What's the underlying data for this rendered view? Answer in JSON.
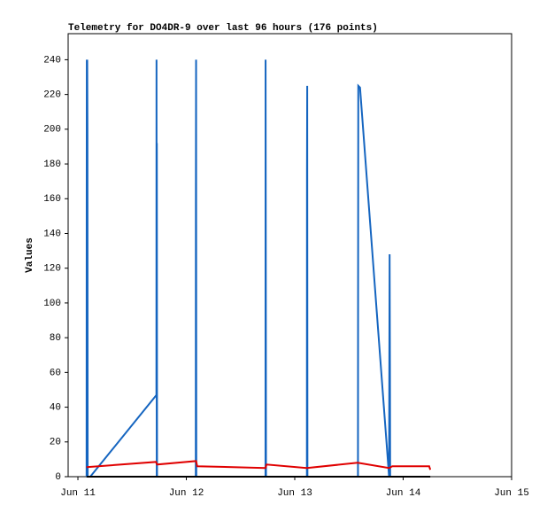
{
  "chart_data": {
    "type": "line",
    "title": "Telemetry for DO4DR-9 over last 96 hours (176 points)",
    "y_label": "Values",
    "xlim": [
      10.91,
      15.0
    ],
    "xticks": [
      {
        "value": 11,
        "label": "Jun 11"
      },
      {
        "value": 12,
        "label": "Jun 12"
      },
      {
        "value": 13,
        "label": "Jun 13"
      },
      {
        "value": 14,
        "label": "Jun 14"
      },
      {
        "value": 15,
        "label": "Jun 15"
      }
    ],
    "ylim": [
      0,
      255
    ],
    "yticks": [
      0,
      20,
      40,
      60,
      80,
      100,
      120,
      140,
      160,
      180,
      200,
      220,
      240
    ],
    "grid": false,
    "series": [
      {
        "color": "#1565c0",
        "x": [
          11.08,
          11.081,
          11.082,
          11.084,
          11.086,
          11.088,
          11.09,
          11.114,
          11.724,
          11.725,
          11.727,
          11.728,
          11.73,
          12.087,
          12.088,
          12.09,
          12.092,
          12.73,
          12.731,
          12.733,
          12.735,
          13.112,
          13.113,
          13.115,
          13.117,
          13.583,
          13.584,
          13.586,
          13.602,
          13.87,
          13.875,
          13.878,
          13.88
        ],
        "values": [
          0,
          160,
          240,
          0,
          240,
          200,
          0,
          0,
          47,
          240,
          0,
          192,
          0,
          0,
          160,
          240,
          0,
          0,
          240,
          120,
          0,
          0,
          176,
          225,
          0,
          0,
          96,
          225,
          224,
          0,
          128,
          64,
          0
        ]
      },
      {
        "color": "#e00000",
        "x": [
          11.08,
          11.72,
          11.73,
          12.09,
          12.1,
          12.73,
          12.74,
          13.11,
          13.58,
          13.87,
          13.9,
          14.24,
          14.25
        ],
        "values": [
          5.5,
          8.5,
          7,
          9,
          6,
          5,
          7,
          5,
          8,
          5,
          6,
          6,
          4
        ]
      },
      {
        "color": "#000000",
        "x": [
          11.08,
          14.25
        ],
        "values": [
          0,
          0
        ]
      }
    ]
  }
}
